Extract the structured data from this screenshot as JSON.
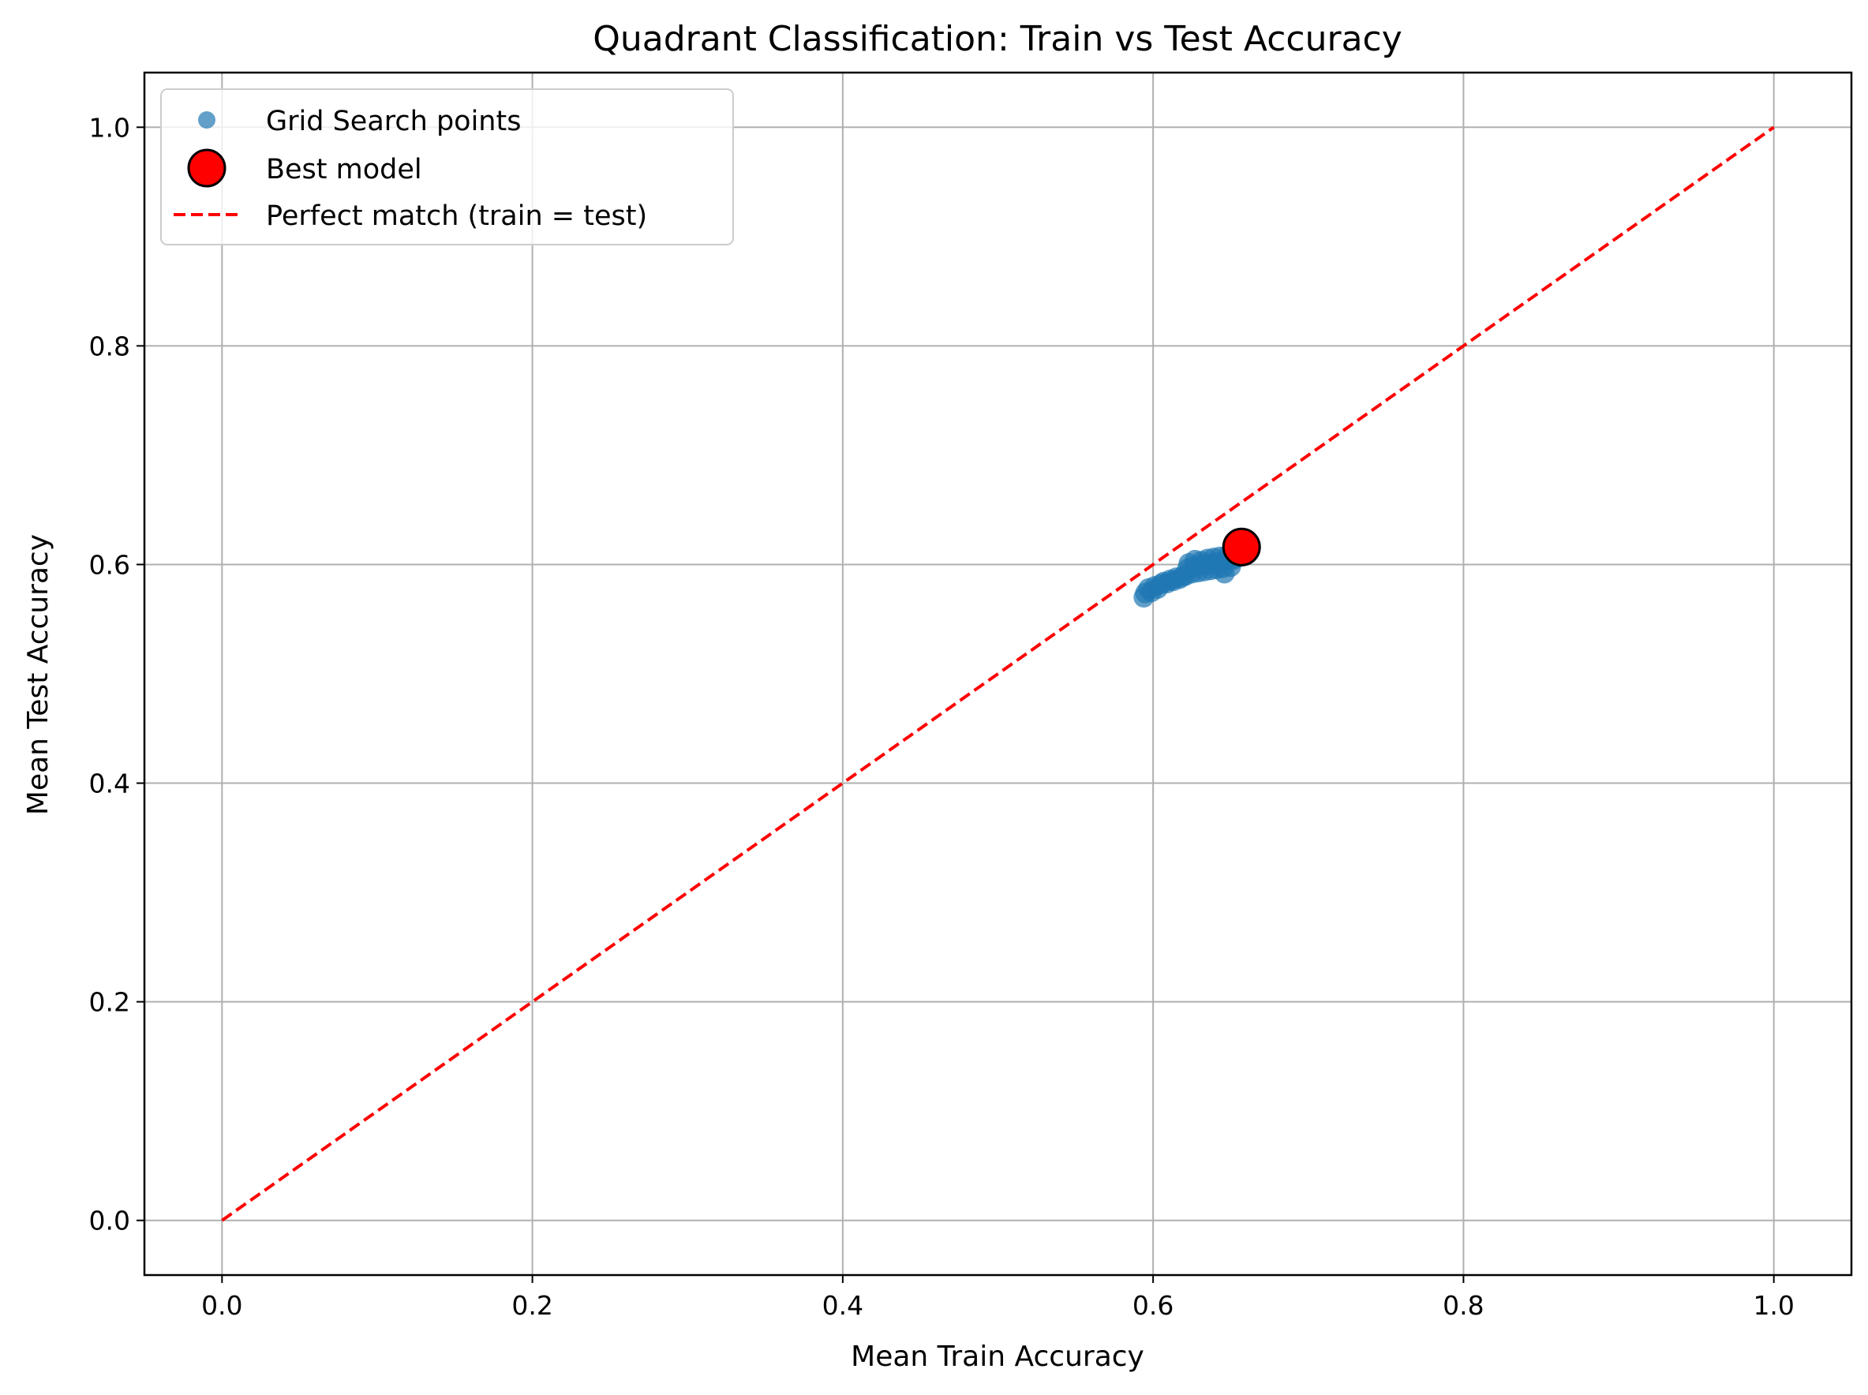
{
  "chart_data": {
    "type": "scatter",
    "title": "Quadrant Classification: Train vs Test Accuracy",
    "xlabel": "Mean Train Accuracy",
    "ylabel": "Mean Test Accuracy",
    "xlim": [
      -0.05,
      1.05
    ],
    "ylim": [
      -0.05,
      1.05
    ],
    "xticks": [
      0.0,
      0.2,
      0.4,
      0.6,
      0.8,
      1.0
    ],
    "xtick_labels": [
      "0.0",
      "0.2",
      "0.4",
      "0.6",
      "0.8",
      "1.0"
    ],
    "yticks": [
      0.0,
      0.2,
      0.4,
      0.6,
      0.8,
      1.0
    ],
    "ytick_labels": [
      "0.0",
      "0.2",
      "0.4",
      "0.6",
      "0.8",
      "1.0"
    ],
    "grid": true,
    "legend_position": "top-left",
    "series": [
      {
        "name": "Grid Search points",
        "kind": "scatter",
        "color": "#1f77b4",
        "points": [
          [
            0.594,
            0.57
          ],
          [
            0.595,
            0.574
          ],
          [
            0.597,
            0.578
          ],
          [
            0.599,
            0.575
          ],
          [
            0.601,
            0.58
          ],
          [
            0.603,
            0.578
          ],
          [
            0.605,
            0.582
          ],
          [
            0.607,
            0.584
          ],
          [
            0.609,
            0.583
          ],
          [
            0.611,
            0.586
          ],
          [
            0.613,
            0.585
          ],
          [
            0.615,
            0.588
          ],
          [
            0.617,
            0.587
          ],
          [
            0.619,
            0.589
          ],
          [
            0.621,
            0.59
          ],
          [
            0.622,
            0.596
          ],
          [
            0.623,
            0.601
          ],
          [
            0.625,
            0.592
          ],
          [
            0.626,
            0.598
          ],
          [
            0.627,
            0.604
          ],
          [
            0.629,
            0.593
          ],
          [
            0.63,
            0.599
          ],
          [
            0.631,
            0.603
          ],
          [
            0.633,
            0.594
          ],
          [
            0.634,
            0.6
          ],
          [
            0.635,
            0.605
          ],
          [
            0.637,
            0.595
          ],
          [
            0.638,
            0.601
          ],
          [
            0.639,
            0.606
          ],
          [
            0.641,
            0.596
          ],
          [
            0.642,
            0.602
          ],
          [
            0.643,
            0.607
          ],
          [
            0.645,
            0.597
          ],
          [
            0.646,
            0.592
          ],
          [
            0.647,
            0.603
          ],
          [
            0.648,
            0.608
          ],
          [
            0.65,
            0.598
          ],
          [
            0.651,
            0.604
          ],
          [
            0.652,
            0.609
          ],
          [
            0.654,
            0.606
          ]
        ]
      },
      {
        "name": "Best model",
        "kind": "scatter",
        "color": "#ff0000",
        "edge_color": "#000000",
        "points": [
          [
            0.657,
            0.616
          ]
        ]
      },
      {
        "name": "Perfect match (train = test)",
        "kind": "line",
        "style": "dashed",
        "color": "#ff0000",
        "points": [
          [
            0.0,
            0.0
          ],
          [
            1.0,
            1.0
          ]
        ]
      }
    ]
  }
}
